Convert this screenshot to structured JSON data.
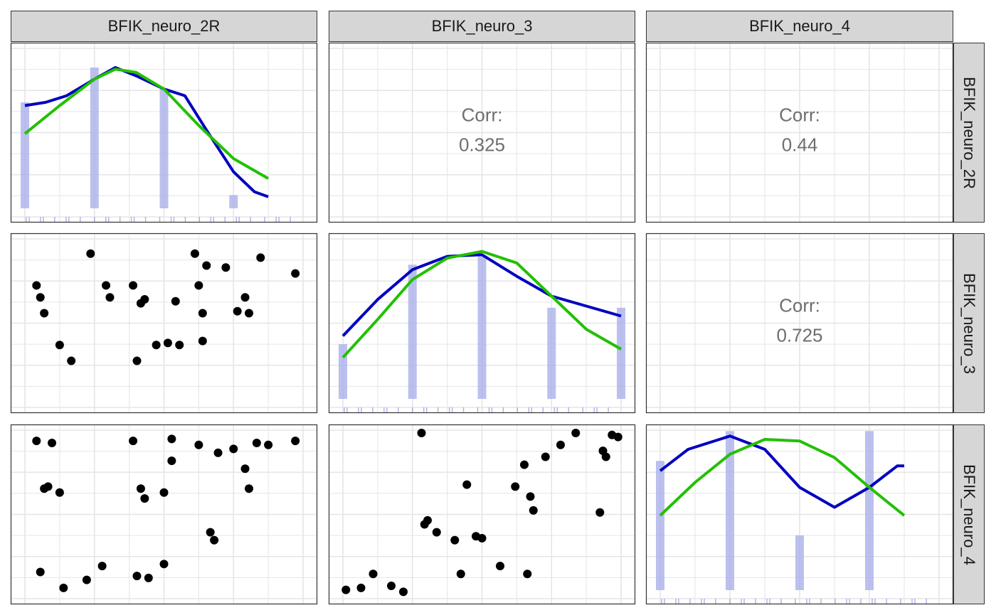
{
  "facet_labels": [
    "BFIK_neuro_2R",
    "BFIK_neuro_3",
    "BFIK_neuro_4"
  ],
  "correlations": {
    "label": "Corr:",
    "r_2R_3": "0.325",
    "r_2R_4": "0.44",
    "r_3_4": "0.725"
  },
  "colors": {
    "density_line": "#0000c0",
    "normal_line": "#22c000",
    "bars": "#aab0ea",
    "points": "#000000",
    "strip": "#d6d6d6",
    "grid": "#e5e5e5"
  },
  "chart_data": {
    "type": "scatter",
    "title": "",
    "variables": [
      "BFIK_neuro_2R",
      "BFIK_neuro_3",
      "BFIK_neuro_4"
    ],
    "ranges": {
      "BFIK_neuro_2R": [
        1,
        5
      ],
      "BFIK_neuro_3": [
        1,
        5
      ],
      "BFIK_neuro_4": [
        1,
        5
      ]
    },
    "grid": true,
    "diagonal_histograms": {
      "BFIK_neuro_2R": {
        "values": [
          1,
          2,
          3,
          4
        ],
        "heights": [
          0.64,
          0.85,
          0.72,
          0.08
        ]
      },
      "BFIK_neuro_3": {
        "values": [
          1,
          2,
          3,
          4,
          5
        ],
        "heights": [
          0.33,
          0.81,
          0.86,
          0.55,
          0.55
        ]
      },
      "BFIK_neuro_4": {
        "values": [
          1,
          2,
          3,
          4
        ],
        "heights": [
          0.78,
          0.96,
          0.33,
          0.96
        ]
      }
    },
    "density_curves": {
      "BFIK_neuro_2R": [
        [
          1,
          0.62
        ],
        [
          1.3,
          0.64
        ],
        [
          1.6,
          0.68
        ],
        [
          2,
          0.78
        ],
        [
          2.3,
          0.85
        ],
        [
          2.6,
          0.8
        ],
        [
          3,
          0.72
        ],
        [
          3.3,
          0.68
        ],
        [
          3.6,
          0.48
        ],
        [
          4,
          0.22
        ],
        [
          4.3,
          0.1
        ],
        [
          4.5,
          0.07
        ]
      ],
      "BFIK_neuro_3": [
        [
          1,
          0.38
        ],
        [
          1.5,
          0.6
        ],
        [
          2,
          0.78
        ],
        [
          2.5,
          0.86
        ],
        [
          3,
          0.87
        ],
        [
          3.5,
          0.74
        ],
        [
          4,
          0.62
        ],
        [
          4.5,
          0.56
        ],
        [
          5,
          0.5
        ]
      ],
      "BFIK_neuro_4": [
        [
          1,
          0.72
        ],
        [
          1.4,
          0.85
        ],
        [
          2,
          0.93
        ],
        [
          2.5,
          0.85
        ],
        [
          3,
          0.62
        ],
        [
          3.5,
          0.5
        ],
        [
          4,
          0.62
        ],
        [
          4.4,
          0.75
        ],
        [
          4.5,
          0.75
        ]
      ]
    },
    "normal_curves": {
      "BFIK_neuro_2R": [
        [
          1,
          0.45
        ],
        [
          1.5,
          0.62
        ],
        [
          2,
          0.78
        ],
        [
          2.3,
          0.84
        ],
        [
          2.6,
          0.82
        ],
        [
          3,
          0.72
        ],
        [
          3.5,
          0.5
        ],
        [
          4,
          0.3
        ],
        [
          4.5,
          0.18
        ]
      ],
      "BFIK_neuro_3": [
        [
          1,
          0.25
        ],
        [
          1.5,
          0.48
        ],
        [
          2,
          0.72
        ],
        [
          2.5,
          0.85
        ],
        [
          3,
          0.89
        ],
        [
          3.5,
          0.82
        ],
        [
          4,
          0.62
        ],
        [
          4.5,
          0.42
        ],
        [
          5,
          0.3
        ]
      ],
      "BFIK_neuro_4": [
        [
          1,
          0.45
        ],
        [
          1.5,
          0.65
        ],
        [
          2,
          0.82
        ],
        [
          2.5,
          0.91
        ],
        [
          3,
          0.9
        ],
        [
          3.5,
          0.8
        ],
        [
          4,
          0.62
        ],
        [
          4.5,
          0.45
        ]
      ]
    },
    "scatter_2R_vs_3": [
      [
        1.15,
        4.0
      ],
      [
        1.2,
        3.7
      ],
      [
        1.25,
        3.3
      ],
      [
        1.45,
        2.5
      ],
      [
        1.6,
        2.1
      ],
      [
        1.85,
        4.8
      ],
      [
        2.05,
        4.0
      ],
      [
        2.1,
        3.7
      ],
      [
        2.4,
        4.0
      ],
      [
        2.5,
        3.55
      ],
      [
        2.55,
        3.65
      ],
      [
        2.45,
        2.1
      ],
      [
        2.7,
        2.5
      ],
      [
        2.85,
        2.55
      ],
      [
        3.0,
        2.5
      ],
      [
        2.95,
        3.6
      ],
      [
        3.2,
        4.8
      ],
      [
        3.25,
        4.0
      ],
      [
        3.3,
        3.3
      ],
      [
        3.3,
        2.6
      ],
      [
        3.35,
        4.5
      ],
      [
        3.6,
        4.45
      ],
      [
        3.75,
        3.35
      ],
      [
        3.85,
        3.7
      ],
      [
        3.9,
        3.3
      ],
      [
        4.05,
        4.7
      ],
      [
        4.5,
        4.3
      ]
    ],
    "scatter_2R_vs_4": [
      [
        1.15,
        4.9
      ],
      [
        1.2,
        1.6
      ],
      [
        1.25,
        3.7
      ],
      [
        1.3,
        3.75
      ],
      [
        1.35,
        4.85
      ],
      [
        1.45,
        3.6
      ],
      [
        1.5,
        1.2
      ],
      [
        1.8,
        1.4
      ],
      [
        2.0,
        1.75
      ],
      [
        2.4,
        4.9
      ],
      [
        2.45,
        1.5
      ],
      [
        2.5,
        3.7
      ],
      [
        2.55,
        3.45
      ],
      [
        2.6,
        1.45
      ],
      [
        2.8,
        1.8
      ],
      [
        2.8,
        3.6
      ],
      [
        2.9,
        4.4
      ],
      [
        2.9,
        4.95
      ],
      [
        3.25,
        4.8
      ],
      [
        3.4,
        2.6
      ],
      [
        3.45,
        2.4
      ],
      [
        3.5,
        4.6
      ],
      [
        3.7,
        4.7
      ],
      [
        3.85,
        4.2
      ],
      [
        3.9,
        3.7
      ],
      [
        4.0,
        4.85
      ],
      [
        4.15,
        4.8
      ],
      [
        4.5,
        4.9
      ]
    ],
    "scatter_3_vs_4": [
      [
        1.05,
        1.15
      ],
      [
        1.3,
        1.2
      ],
      [
        1.5,
        1.55
      ],
      [
        1.8,
        1.25
      ],
      [
        2.0,
        1.1
      ],
      [
        2.3,
        5.1
      ],
      [
        2.35,
        2.8
      ],
      [
        2.4,
        2.9
      ],
      [
        2.55,
        2.6
      ],
      [
        2.85,
        2.4
      ],
      [
        2.95,
        1.55
      ],
      [
        3.05,
        3.8
      ],
      [
        3.2,
        2.5
      ],
      [
        3.3,
        2.45
      ],
      [
        3.6,
        1.75
      ],
      [
        3.85,
        3.75
      ],
      [
        4.0,
        4.3
      ],
      [
        4.05,
        1.55
      ],
      [
        4.1,
        3.5
      ],
      [
        4.15,
        3.15
      ],
      [
        4.35,
        4.5
      ],
      [
        4.6,
        4.8
      ],
      [
        4.85,
        5.1
      ],
      [
        5.25,
        3.1
      ],
      [
        5.3,
        4.65
      ],
      [
        5.35,
        4.5
      ],
      [
        5.45,
        5.05
      ],
      [
        5.55,
        5.0
      ]
    ]
  }
}
